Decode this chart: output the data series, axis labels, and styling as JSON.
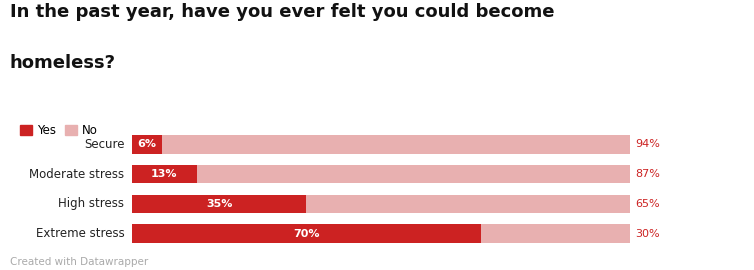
{
  "title_line1": "In the past year, have you ever felt you could become",
  "title_line2": "homeless?",
  "categories": [
    "Secure",
    "Moderate stress",
    "High stress",
    "Extreme stress"
  ],
  "yes_values": [
    6,
    13,
    35,
    70
  ],
  "no_values": [
    94,
    87,
    65,
    30
  ],
  "yes_color": "#cc2222",
  "no_color": "#e8b0b0",
  "yes_label": "Yes",
  "no_label": "No",
  "footnote": "Created with Datawrapper",
  "bg_color": "#ffffff",
  "title_fontsize": 13,
  "legend_fontsize": 8.5,
  "bar_label_fontsize": 8,
  "category_fontsize": 8.5,
  "footnote_fontsize": 7.5,
  "no_label_color": "#cc2222"
}
